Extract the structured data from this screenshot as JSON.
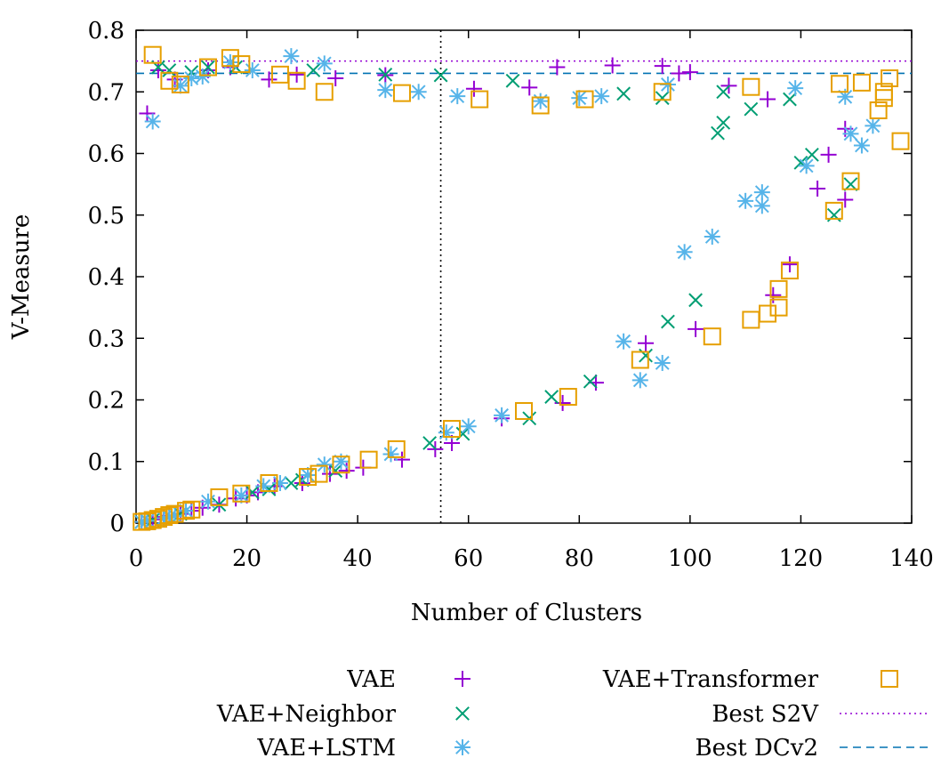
{
  "chart_data": {
    "type": "scatter",
    "xlabel": "Number of Clusters",
    "ylabel": "V-Measure",
    "xlim": [
      0,
      140
    ],
    "ylim": [
      0,
      0.8
    ],
    "x_ticks": [
      "0",
      "20",
      "40",
      "60",
      "80",
      "100",
      "120",
      "140"
    ],
    "y_ticks": [
      "0",
      "0.1",
      "0.2",
      "0.3",
      "0.4",
      "0.5",
      "0.6",
      "0.7",
      "0.8"
    ],
    "grid": false,
    "legend_position": "bottom",
    "series": [
      {
        "name": "VAE",
        "marker": "plus",
        "color": "#9400d3",
        "points": [
          [
            1,
            0.002
          ],
          [
            2,
            0.004
          ],
          [
            2,
            0.665
          ],
          [
            3,
            0.006
          ],
          [
            4,
            0.735
          ],
          [
            5,
            0.01
          ],
          [
            6,
            0.012
          ],
          [
            7,
            0.72
          ],
          [
            8,
            0.015
          ],
          [
            10,
            0.02
          ],
          [
            12,
            0.025
          ],
          [
            13,
            0.735
          ],
          [
            15,
            0.03
          ],
          [
            17,
            0.74
          ],
          [
            18,
            0.04
          ],
          [
            20,
            0.045
          ],
          [
            22,
            0.05
          ],
          [
            24,
            0.72
          ],
          [
            25,
            0.06
          ],
          [
            29,
            0.728
          ],
          [
            30,
            0.065
          ],
          [
            35,
            0.08
          ],
          [
            36,
            0.722
          ],
          [
            38,
            0.085
          ],
          [
            41,
            0.09
          ],
          [
            45,
            0.727
          ],
          [
            48,
            0.103
          ],
          [
            54,
            0.12
          ],
          [
            57,
            0.13
          ],
          [
            61,
            0.705
          ],
          [
            66,
            0.17
          ],
          [
            71,
            0.707
          ],
          [
            76,
            0.74
          ],
          [
            77,
            0.195
          ],
          [
            83,
            0.228
          ],
          [
            86,
            0.743
          ],
          [
            92,
            0.292
          ],
          [
            95,
            0.742
          ],
          [
            98,
            0.73
          ],
          [
            100,
            0.732
          ],
          [
            101,
            0.315
          ],
          [
            107,
            0.71
          ],
          [
            114,
            0.688
          ],
          [
            115,
            0.37
          ],
          [
            118,
            0.42
          ],
          [
            123,
            0.543
          ],
          [
            125,
            0.598
          ],
          [
            128,
            0.525
          ],
          [
            128,
            0.64
          ]
        ]
      },
      {
        "name": "VAE+Neighbor",
        "marker": "cross",
        "color": "#009e73",
        "points": [
          [
            1,
            0.002
          ],
          [
            3,
            0.005
          ],
          [
            4,
            0.74
          ],
          [
            6,
            0.735
          ],
          [
            8,
            0.015
          ],
          [
            10,
            0.732
          ],
          [
            13,
            0.74
          ],
          [
            15,
            0.03
          ],
          [
            18,
            0.74
          ],
          [
            21,
            0.05
          ],
          [
            24,
            0.055
          ],
          [
            28,
            0.065
          ],
          [
            30,
            0.07
          ],
          [
            32,
            0.735
          ],
          [
            36,
            0.085
          ],
          [
            45,
            0.728
          ],
          [
            53,
            0.13
          ],
          [
            55,
            0.727
          ],
          [
            59,
            0.145
          ],
          [
            68,
            0.718
          ],
          [
            71,
            0.17
          ],
          [
            75,
            0.205
          ],
          [
            82,
            0.23
          ],
          [
            88,
            0.697
          ],
          [
            92,
            0.272
          ],
          [
            95,
            0.69
          ],
          [
            96,
            0.327
          ],
          [
            101,
            0.362
          ],
          [
            105,
            0.633
          ],
          [
            106,
            0.65
          ],
          [
            106,
            0.7
          ],
          [
            111,
            0.672
          ],
          [
            118,
            0.688
          ],
          [
            120,
            0.585
          ],
          [
            122,
            0.598
          ],
          [
            126,
            0.5
          ],
          [
            129,
            0.55
          ]
        ]
      },
      {
        "name": "VAE+LSTM",
        "marker": "star",
        "color": "#56b4e9",
        "points": [
          [
            1,
            0.002
          ],
          [
            2,
            0.004
          ],
          [
            3,
            0.652
          ],
          [
            5,
            0.008
          ],
          [
            6,
            0.01
          ],
          [
            7,
            0.012
          ],
          [
            8,
            0.71
          ],
          [
            9,
            0.02
          ],
          [
            10,
            0.722
          ],
          [
            12,
            0.725
          ],
          [
            13,
            0.035
          ],
          [
            17,
            0.748
          ],
          [
            19,
            0.045
          ],
          [
            21,
            0.735
          ],
          [
            23,
            0.06
          ],
          [
            26,
            0.065
          ],
          [
            28,
            0.758
          ],
          [
            31,
            0.078
          ],
          [
            34,
            0.095
          ],
          [
            34,
            0.746
          ],
          [
            37,
            0.1
          ],
          [
            45,
            0.703
          ],
          [
            46,
            0.112
          ],
          [
            51,
            0.7
          ],
          [
            56,
            0.147
          ],
          [
            58,
            0.693
          ],
          [
            60,
            0.157
          ],
          [
            66,
            0.175
          ],
          [
            73,
            0.685
          ],
          [
            80,
            0.69
          ],
          [
            84,
            0.693
          ],
          [
            88,
            0.295
          ],
          [
            91,
            0.232
          ],
          [
            95,
            0.26
          ],
          [
            96,
            0.712
          ],
          [
            99,
            0.44
          ],
          [
            104,
            0.465
          ],
          [
            110,
            0.523
          ],
          [
            113,
            0.515
          ],
          [
            113,
            0.537
          ],
          [
            119,
            0.706
          ],
          [
            121,
            0.58
          ],
          [
            128,
            0.692
          ],
          [
            129,
            0.632
          ],
          [
            131,
            0.613
          ],
          [
            133,
            0.645
          ]
        ]
      },
      {
        "name": "VAE+Transformer",
        "marker": "square",
        "color": "#e69f00",
        "points": [
          [
            1,
            0.002
          ],
          [
            2,
            0.003
          ],
          [
            3,
            0.76
          ],
          [
            3,
            0.005
          ],
          [
            4,
            0.007
          ],
          [
            5,
            0.01
          ],
          [
            6,
            0.013
          ],
          [
            6,
            0.718
          ],
          [
            7,
            0.015
          ],
          [
            8,
            0.712
          ],
          [
            9,
            0.02
          ],
          [
            10,
            0.022
          ],
          [
            13,
            0.74
          ],
          [
            15,
            0.042
          ],
          [
            17,
            0.755
          ],
          [
            19,
            0.048
          ],
          [
            19,
            0.745
          ],
          [
            24,
            0.065
          ],
          [
            26,
            0.728
          ],
          [
            29,
            0.718
          ],
          [
            31,
            0.075
          ],
          [
            33,
            0.08
          ],
          [
            34,
            0.7
          ],
          [
            37,
            0.095
          ],
          [
            42,
            0.103
          ],
          [
            47,
            0.12
          ],
          [
            48,
            0.698
          ],
          [
            57,
            0.153
          ],
          [
            62,
            0.688
          ],
          [
            70,
            0.182
          ],
          [
            73,
            0.678
          ],
          [
            78,
            0.205
          ],
          [
            81,
            0.688
          ],
          [
            91,
            0.265
          ],
          [
            95,
            0.7
          ],
          [
            104,
            0.303
          ],
          [
            111,
            0.33
          ],
          [
            111,
            0.708
          ],
          [
            114,
            0.34
          ],
          [
            116,
            0.35
          ],
          [
            116,
            0.38
          ],
          [
            118,
            0.41
          ],
          [
            126,
            0.507
          ],
          [
            127,
            0.713
          ],
          [
            129,
            0.555
          ],
          [
            131,
            0.715
          ],
          [
            134,
            0.67
          ],
          [
            135,
            0.69
          ],
          [
            135,
            0.7
          ],
          [
            136,
            0.722
          ],
          [
            138,
            0.62
          ]
        ]
      },
      {
        "name": "Best S2V",
        "type": "hline",
        "style": "dotted",
        "color": "#9400d3",
        "y": 0.75
      },
      {
        "name": "Best DCv2",
        "type": "hline",
        "style": "dashed",
        "color": "#0072b2",
        "y": 0.73
      }
    ],
    "vline": {
      "x": 55,
      "style": "dotted",
      "color": "#000000"
    }
  }
}
